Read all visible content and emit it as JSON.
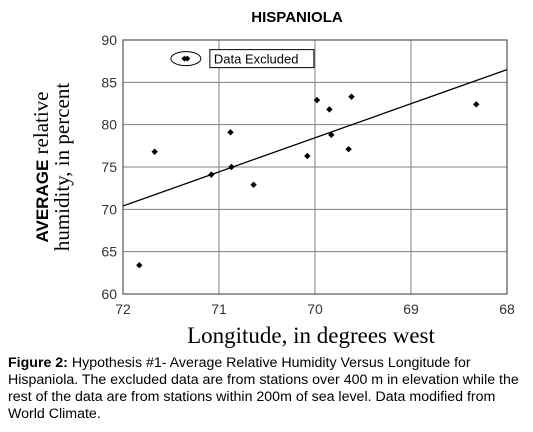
{
  "chart_data": {
    "type": "scatter",
    "title": "HISPANIOLA",
    "ylabel_bold": "AVERAGE",
    "ylabel_line1_rest": " relative",
    "ylabel_line2": "humidity, in percent",
    "xlabel": "Longitude, in degrees west",
    "x_ticks": [
      "72",
      "71",
      "70",
      "69",
      "68"
    ],
    "x_tick_values": [
      72,
      71,
      70,
      69,
      68
    ],
    "y_ticks": [
      "90",
      "85",
      "80",
      "75",
      "70",
      "65",
      "60"
    ],
    "y_tick_values": [
      90,
      85,
      80,
      75,
      70,
      65,
      60
    ],
    "xlim": [
      72,
      68
    ],
    "ylim": [
      60,
      90
    ],
    "grid": true,
    "points": [
      {
        "x": 71.83,
        "y": 63.4
      },
      {
        "x": 71.67,
        "y": 76.8
      },
      {
        "x": 71.08,
        "y": 74.1
      },
      {
        "x": 70.88,
        "y": 79.1
      },
      {
        "x": 70.87,
        "y": 75.0
      },
      {
        "x": 70.64,
        "y": 72.9
      },
      {
        "x": 70.08,
        "y": 76.3
      },
      {
        "x": 69.98,
        "y": 82.9
      },
      {
        "x": 69.85,
        "y": 81.8
      },
      {
        "x": 69.83,
        "y": 78.8
      },
      {
        "x": 69.65,
        "y": 77.1
      },
      {
        "x": 69.62,
        "y": 83.3
      },
      {
        "x": 68.32,
        "y": 82.4
      }
    ],
    "excluded_points": [
      {
        "x": 71.36,
        "y": 87.8
      },
      {
        "x": 71.33,
        "y": 87.8
      }
    ],
    "excluded_label": "Data Excluded",
    "trendline": {
      "x": [
        72,
        68
      ],
      "y": [
        70.4,
        86.5
      ]
    }
  },
  "caption": {
    "label": "Figure 2:",
    "text": " Hypothesis #1- Average Relative Humidity Versus Longitude for Hispaniola. The excluded data are from stations over 400 m in elevation while the rest of the data are from stations within 200m of sea level. Data modified from World Climate."
  },
  "colors": {
    "grid": "#808080",
    "frame": "#555555",
    "marker": "#000000",
    "axis_text": "#333333"
  }
}
